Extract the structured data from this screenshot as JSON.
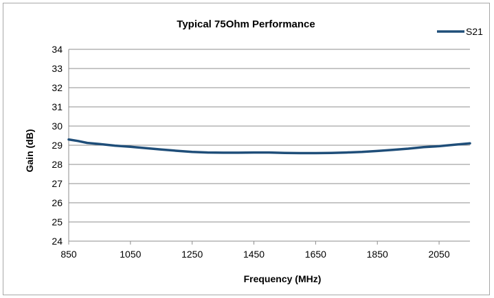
{
  "chart_data": {
    "type": "line",
    "title": "Typical 75Ohm Performance",
    "xlabel": "Frequency (MHz)",
    "ylabel": "Gain (dB)",
    "xlim": [
      850,
      2150
    ],
    "ylim": [
      24,
      34
    ],
    "xticks": [
      850,
      1050,
      1250,
      1450,
      1650,
      1850,
      2050
    ],
    "yticks": [
      24,
      25,
      26,
      27,
      28,
      29,
      30,
      31,
      32,
      33,
      34
    ],
    "grid": "horizontal",
    "legend": "top-right",
    "series": [
      {
        "name": "S21",
        "color": "#1f4e79",
        "x": [
          850,
          880,
          910,
          950,
          1000,
          1050,
          1100,
          1150,
          1200,
          1250,
          1300,
          1350,
          1400,
          1450,
          1500,
          1550,
          1600,
          1650,
          1700,
          1750,
          1800,
          1850,
          1900,
          1950,
          2000,
          2050,
          2100,
          2150
        ],
        "y": [
          29.3,
          29.22,
          29.12,
          29.06,
          28.98,
          28.92,
          28.85,
          28.78,
          28.71,
          28.65,
          28.62,
          28.61,
          28.61,
          28.62,
          28.62,
          28.6,
          28.59,
          28.59,
          28.6,
          28.62,
          28.65,
          28.7,
          28.76,
          28.82,
          28.9,
          28.95,
          29.03,
          29.1
        ]
      }
    ]
  }
}
